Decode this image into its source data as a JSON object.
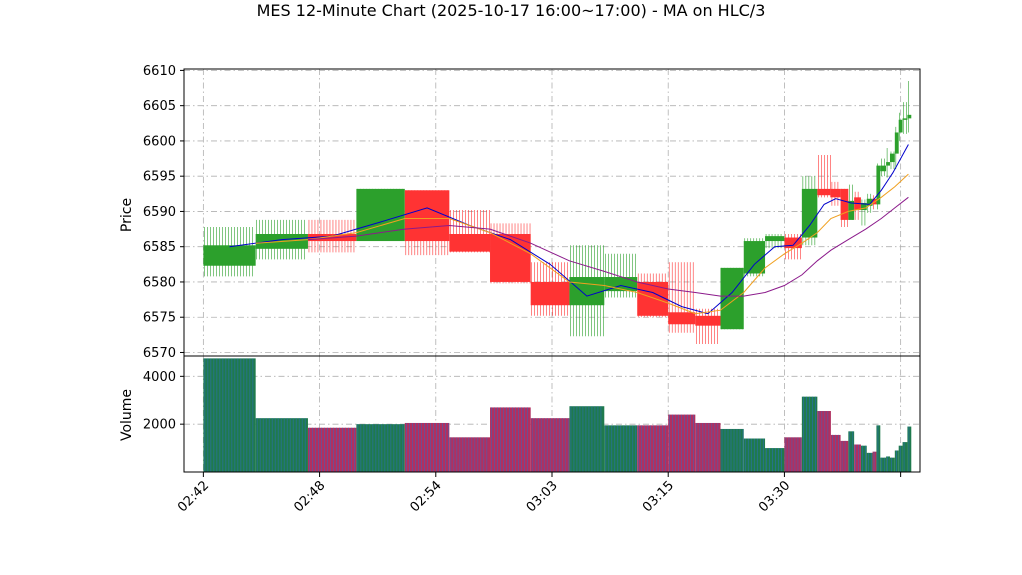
{
  "chart_data": {
    "type": "candlestick",
    "title": "MES 12-Minute Chart (2025-10-17 16:00~17:00) - MA on HLC/3",
    "price_panel": {
      "ylabel": "Price",
      "ylim": [
        6569.5,
        6610.2
      ],
      "yticks": [
        6570,
        6575,
        6580,
        6585,
        6590,
        6595,
        6600,
        6605,
        6610
      ],
      "grid": true
    },
    "volume_panel": {
      "ylabel": "Volume",
      "ylim": [
        0,
        4850
      ],
      "yticks": [
        2000,
        4000
      ],
      "grid": true
    },
    "xaxis": {
      "range": [
        -1,
        37
      ],
      "ticks": [
        {
          "x": 0,
          "label": "02:42"
        },
        {
          "x": 6,
          "label": "02:48"
        },
        {
          "x": 12,
          "label": "02:54"
        },
        {
          "x": 18,
          "label": "03:03"
        },
        {
          "x": 24,
          "label": "03:15"
        },
        {
          "x": 30,
          "label": "03:30"
        },
        {
          "x": 36,
          "label": ""
        }
      ]
    },
    "colors": {
      "up": "#2ca02c",
      "down": "#ff3333",
      "volume_up": "#1f7a4d",
      "volume_down": "#b03060",
      "ma_fast": "#0000cc",
      "ma_mid": "#f0a020",
      "ma_slow": "#8b1a8b"
    },
    "bars": [
      {
        "x": 0,
        "w": 2.7,
        "o": 6582.3,
        "h": 6587.8,
        "l": 6580.8,
        "c": 6585.2,
        "v": 4750
      },
      {
        "x": 2.7,
        "w": 2.7,
        "o": 6584.7,
        "h": 6588.8,
        "l": 6583.2,
        "c": 6586.8,
        "v": 2250
      },
      {
        "x": 5.4,
        "w": 2.5,
        "o": 6586.8,
        "h": 6588.8,
        "l": 6584.2,
        "c": 6585.8,
        "v": 1850
      },
      {
        "x": 7.9,
        "w": 2.5,
        "o": 6585.8,
        "h": 6593.2,
        "l": 6585.8,
        "c": 6593.2,
        "v": 2000
      },
      {
        "x": 10.4,
        "w": 2.3,
        "o": 6593.0,
        "h": 6593.0,
        "l": 6583.8,
        "c": 6585.8,
        "v": 2050
      },
      {
        "x": 12.7,
        "w": 2.1,
        "o": 6586.8,
        "h": 6590.2,
        "l": 6584.2,
        "c": 6584.3,
        "v": 1450
      },
      {
        "x": 14.8,
        "w": 2.1,
        "o": 6586.8,
        "h": 6588.3,
        "l": 6579.8,
        "c": 6580.0,
        "v": 2700
      },
      {
        "x": 16.9,
        "w": 2.0,
        "o": 6580.0,
        "h": 6582.8,
        "l": 6575.2,
        "c": 6576.7,
        "v": 2250
      },
      {
        "x": 18.9,
        "w": 1.8,
        "o": 6576.7,
        "h": 6585.2,
        "l": 6572.3,
        "c": 6580.7,
        "v": 2750
      },
      {
        "x": 20.7,
        "w": 1.7,
        "o": 6578.7,
        "h": 6584.0,
        "l": 6577.8,
        "c": 6580.7,
        "v": 1950
      },
      {
        "x": 22.4,
        "w": 1.6,
        "o": 6580.0,
        "h": 6581.2,
        "l": 6575.0,
        "c": 6575.2,
        "v": 1950
      },
      {
        "x": 24.0,
        "w": 1.4,
        "o": 6575.7,
        "h": 6582.8,
        "l": 6572.8,
        "c": 6574.0,
        "v": 2400
      },
      {
        "x": 25.4,
        "w": 1.3,
        "o": 6575.2,
        "h": 6576.2,
        "l": 6571.2,
        "c": 6573.8,
        "v": 2050
      },
      {
        "x": 26.7,
        "w": 1.2,
        "o": 6573.3,
        "h": 6582.0,
        "l": 6573.3,
        "c": 6582.0,
        "v": 1800
      },
      {
        "x": 27.9,
        "w": 1.1,
        "o": 6581.2,
        "h": 6586.2,
        "l": 6580.8,
        "c": 6585.8,
        "v": 1400
      },
      {
        "x": 29.0,
        "w": 1.0,
        "o": 6585.8,
        "h": 6586.8,
        "l": 6584.8,
        "c": 6586.5,
        "v": 1000
      },
      {
        "x": 30.0,
        "w": 0.9,
        "o": 6586.3,
        "h": 6586.8,
        "l": 6583.2,
        "c": 6584.8,
        "v": 1450
      },
      {
        "x": 30.9,
        "w": 0.8,
        "o": 6586.3,
        "h": 6595.0,
        "l": 6585.2,
        "c": 6593.2,
        "v": 3150
      },
      {
        "x": 31.7,
        "w": 0.7,
        "o": 6593.2,
        "h": 6598.0,
        "l": 6592.0,
        "c": 6592.3,
        "v": 2550
      },
      {
        "x": 32.4,
        "w": 0.5,
        "o": 6593.2,
        "h": 6594.2,
        "l": 6590.8,
        "c": 6592.0,
        "v": 1550
      },
      {
        "x": 32.9,
        "w": 0.4,
        "o": 6593.2,
        "h": 6593.2,
        "l": 6587.8,
        "c": 6588.8,
        "v": 1300
      },
      {
        "x": 33.3,
        "w": 0.3,
        "o": 6588.8,
        "h": 6593.8,
        "l": 6588.8,
        "c": 6591.5,
        "v": 1700
      },
      {
        "x": 33.6,
        "w": 0.35,
        "o": 6592.0,
        "h": 6592.8,
        "l": 6588.8,
        "c": 6590.2,
        "v": 1150
      },
      {
        "x": 33.95,
        "w": 0.3,
        "o": 6590.2,
        "h": 6591.7,
        "l": 6588.0,
        "c": 6591.2,
        "v": 1100
      },
      {
        "x": 34.25,
        "w": 0.3,
        "o": 6590.8,
        "h": 6592.5,
        "l": 6589.8,
        "c": 6591.8,
        "v": 800
      },
      {
        "x": 34.55,
        "w": 0.2,
        "o": 6591.8,
        "h": 6592.3,
        "l": 6590.3,
        "c": 6591.0,
        "v": 850
      },
      {
        "x": 34.75,
        "w": 0.2,
        "o": 6591.0,
        "h": 6596.8,
        "l": 6590.3,
        "c": 6596.5,
        "v": 1950
      },
      {
        "x": 34.95,
        "w": 0.3,
        "o": 6595.7,
        "h": 6597.5,
        "l": 6595.0,
        "c": 6596.5,
        "v": 600
      },
      {
        "x": 35.25,
        "w": 0.2,
        "o": 6596.5,
        "h": 6599.0,
        "l": 6594.8,
        "c": 6597.0,
        "v": 650
      },
      {
        "x": 35.45,
        "w": 0.25,
        "o": 6597.0,
        "h": 6598.5,
        "l": 6596.0,
        "c": 6598.2,
        "v": 600
      },
      {
        "x": 35.7,
        "w": 0.2,
        "o": 6598.2,
        "h": 6602.0,
        "l": 6596.0,
        "c": 6601.2,
        "v": 900
      },
      {
        "x": 35.9,
        "w": 0.2,
        "o": 6601.2,
        "h": 6604.0,
        "l": 6600.0,
        "c": 6603.0,
        "v": 1100
      },
      {
        "x": 36.1,
        "w": 0.25,
        "o": 6603.0,
        "h": 6605.5,
        "l": 6601.0,
        "c": 6603.2,
        "v": 1250
      },
      {
        "x": 36.35,
        "w": 0.2,
        "o": 6603.2,
        "h": 6608.5,
        "l": 6601.2,
        "c": 6603.7,
        "v": 1900
      }
    ],
    "ma_series": [
      {
        "key": "ma_fast",
        "points": [
          [
            1.35,
            6585.0
          ],
          [
            4.05,
            6586.0
          ],
          [
            6.65,
            6586.5
          ],
          [
            9.15,
            6588.5
          ],
          [
            11.55,
            6590.5
          ],
          [
            13.75,
            6588.0
          ],
          [
            15.85,
            6586.0
          ],
          [
            17.9,
            6582.5
          ],
          [
            19.8,
            6578.0
          ],
          [
            21.55,
            6579.5
          ],
          [
            23.2,
            6578.5
          ],
          [
            24.7,
            6576.5
          ],
          [
            26.05,
            6575.5
          ],
          [
            27.3,
            6578.5
          ],
          [
            28.45,
            6582.5
          ],
          [
            29.5,
            6585.0
          ],
          [
            30.45,
            6585.2
          ],
          [
            31.3,
            6588.0
          ],
          [
            32.05,
            6591.0
          ],
          [
            32.65,
            6591.8
          ],
          [
            33.45,
            6591.2
          ],
          [
            34.4,
            6591.0
          ],
          [
            35.0,
            6593.0
          ],
          [
            35.6,
            6595.5
          ],
          [
            36.4,
            6599.5
          ]
        ]
      },
      {
        "key": "ma_mid",
        "points": [
          [
            2.7,
            6585.5
          ],
          [
            5.4,
            6586.0
          ],
          [
            7.9,
            6587.0
          ],
          [
            10.4,
            6589.0
          ],
          [
            12.7,
            6589.0
          ],
          [
            14.8,
            6587.0
          ],
          [
            16.9,
            6584.0
          ],
          [
            18.9,
            6580.0
          ],
          [
            20.7,
            6579.5
          ],
          [
            22.4,
            6578.5
          ],
          [
            24.0,
            6577.0
          ],
          [
            25.4,
            6575.5
          ],
          [
            26.7,
            6576.0
          ],
          [
            27.9,
            6578.5
          ],
          [
            29.0,
            6582.0
          ],
          [
            30.0,
            6584.0
          ],
          [
            30.9,
            6585.5
          ],
          [
            31.7,
            6587.0
          ],
          [
            32.4,
            6589.0
          ],
          [
            33.3,
            6590.0
          ],
          [
            34.2,
            6590.5
          ],
          [
            35.0,
            6592.0
          ],
          [
            35.7,
            6593.5
          ],
          [
            36.4,
            6595.3
          ]
        ]
      },
      {
        "key": "ma_slow",
        "points": [
          [
            5.4,
            6586.0
          ],
          [
            7.9,
            6586.5
          ],
          [
            10.4,
            6587.5
          ],
          [
            12.7,
            6588.0
          ],
          [
            14.8,
            6587.5
          ],
          [
            16.9,
            6585.5
          ],
          [
            18.9,
            6583.0
          ],
          [
            20.7,
            6581.5
          ],
          [
            22.4,
            6580.0
          ],
          [
            24.0,
            6579.0
          ],
          [
            25.4,
            6578.5
          ],
          [
            26.7,
            6578.0
          ],
          [
            27.9,
            6578.0
          ],
          [
            29.0,
            6578.5
          ],
          [
            30.0,
            6579.5
          ],
          [
            30.9,
            6581.0
          ],
          [
            31.7,
            6583.0
          ],
          [
            32.4,
            6584.5
          ],
          [
            33.3,
            6586.0
          ],
          [
            34.2,
            6587.5
          ],
          [
            35.0,
            6589.0
          ],
          [
            35.7,
            6590.5
          ],
          [
            36.4,
            6592.0
          ]
        ]
      }
    ]
  }
}
